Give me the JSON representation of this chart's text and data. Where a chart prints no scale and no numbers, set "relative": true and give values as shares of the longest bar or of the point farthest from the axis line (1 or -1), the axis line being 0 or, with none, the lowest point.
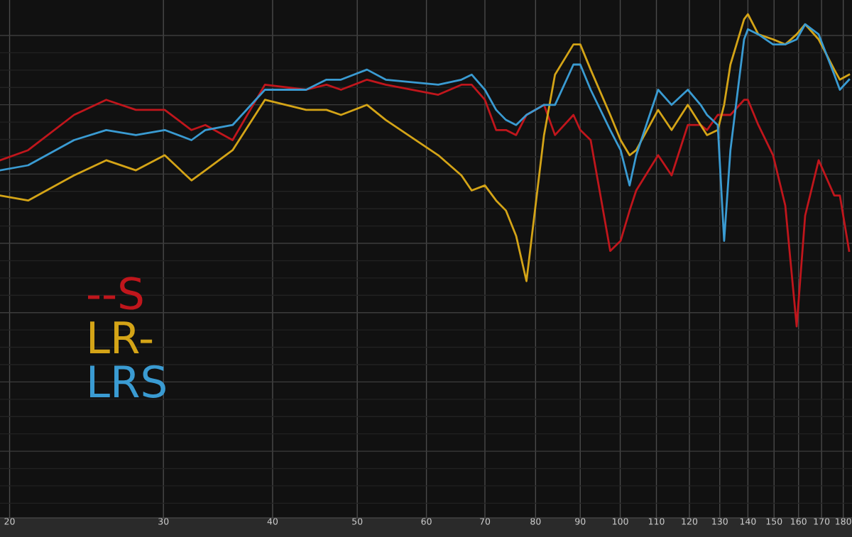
{
  "chart_data": {
    "type": "line",
    "relative": true,
    "log": "x",
    "grid": true,
    "legend": "bottom left",
    "marker": "none",
    "line_style": "solid",
    "xlim": [
      19.5,
      184.2
    ],
    "xticks": [
      20,
      30,
      40,
      50,
      60,
      70,
      80,
      90,
      100,
      110,
      120,
      130,
      140,
      150,
      160,
      170,
      180
    ],
    "x": [
      19.5,
      21.0,
      23.7,
      25.8,
      27.9,
      30.1,
      32.3,
      33.5,
      36.0,
      39.2,
      43.7,
      46.1,
      47.9,
      51.3,
      53.9,
      61.9,
      65.8,
      67.6,
      70.0,
      72.1,
      74.0,
      76.0,
      78.1,
      81.8,
      84.2,
      88.4,
      90.0,
      92.5,
      97.4,
      100.1,
      102.5,
      104.3,
      110.5,
      114.5,
      119.5,
      123.6,
      125.7,
      129.3,
      131.5,
      133.7,
      138.6,
      140.0,
      143.9,
      149.6,
      154.5,
      159.2,
      162.8,
      168.7,
      175.8,
      178.4,
      182.8
    ],
    "series": [
      {
        "name": "--S",
        "color": "#c0161c",
        "values": [
          0.71,
          0.73,
          0.8,
          0.83,
          0.81,
          0.81,
          0.77,
          0.78,
          0.75,
          0.86,
          0.85,
          0.86,
          0.85,
          0.87,
          0.86,
          0.84,
          0.86,
          0.86,
          0.83,
          0.77,
          0.77,
          0.76,
          0.8,
          0.82,
          0.76,
          0.8,
          0.77,
          0.75,
          0.53,
          0.55,
          0.61,
          0.65,
          0.72,
          0.68,
          0.78,
          0.78,
          0.77,
          0.8,
          0.8,
          0.8,
          0.83,
          0.83,
          0.78,
          0.72,
          0.62,
          0.38,
          0.6,
          0.71,
          0.64,
          0.64,
          0.53
        ]
      },
      {
        "name": "LR-",
        "color": "#d4a417",
        "values": [
          0.64,
          0.63,
          0.68,
          0.71,
          0.69,
          0.72,
          0.67,
          0.69,
          0.73,
          0.83,
          0.81,
          0.81,
          0.8,
          0.82,
          0.79,
          0.72,
          0.68,
          0.65,
          0.66,
          0.63,
          0.61,
          0.56,
          0.47,
          0.76,
          0.88,
          0.94,
          0.94,
          0.89,
          0.8,
          0.75,
          0.72,
          0.73,
          0.81,
          0.77,
          0.82,
          0.78,
          0.76,
          0.77,
          0.82,
          0.9,
          0.99,
          1.0,
          0.96,
          0.95,
          0.94,
          0.96,
          0.98,
          0.95,
          0.89,
          0.87,
          0.88
        ]
      },
      {
        "name": "LRS",
        "color": "#3a9bd2",
        "values": [
          0.69,
          0.7,
          0.75,
          0.77,
          0.76,
          0.77,
          0.75,
          0.77,
          0.78,
          0.85,
          0.85,
          0.87,
          0.87,
          0.89,
          0.87,
          0.86,
          0.87,
          0.88,
          0.85,
          0.81,
          0.79,
          0.78,
          0.8,
          0.82,
          0.82,
          0.9,
          0.9,
          0.85,
          0.77,
          0.73,
          0.66,
          0.72,
          0.85,
          0.82,
          0.85,
          0.82,
          0.8,
          0.78,
          0.55,
          0.73,
          0.95,
          0.97,
          0.96,
          0.94,
          0.94,
          0.95,
          0.98,
          0.96,
          0.88,
          0.85,
          0.87
        ]
      }
    ]
  }
}
